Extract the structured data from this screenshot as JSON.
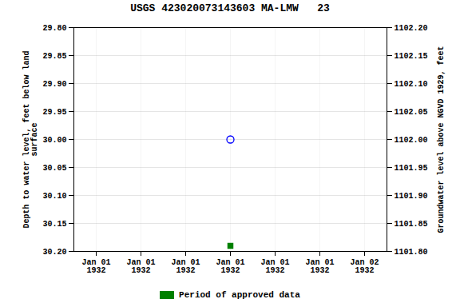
{
  "chart_data": {
    "type": "scatter",
    "title": "USGS 423020073143603 MA-LMW   23",
    "categories": [
      "Jan 01\n1932",
      "Jan 01\n1932",
      "Jan 01\n1932",
      "Jan 01\n1932",
      "Jan 01\n1932",
      "Jan 01\n1932",
      "Jan 02\n1932"
    ],
    "ylabel": "Depth to water level, feet below land\nsurface",
    "y2label": "Groundwater level above NGVD 1929, feet",
    "ylim": [
      30.2,
      29.8
    ],
    "yticks": [
      {
        "value": 29.8,
        "label": "29.80"
      },
      {
        "value": 29.85,
        "label": "29.85"
      },
      {
        "value": 29.9,
        "label": "29.90"
      },
      {
        "value": 29.95,
        "label": "29.95"
      },
      {
        "value": 30.0,
        "label": "30.00"
      },
      {
        "value": 30.05,
        "label": "30.05"
      },
      {
        "value": 30.1,
        "label": "30.10"
      },
      {
        "value": 30.15,
        "label": "30.15"
      },
      {
        "value": 30.2,
        "label": "30.20"
      }
    ],
    "y2lim": [
      1101.8,
      1102.2
    ],
    "y2ticks": [
      {
        "value": 1101.8,
        "label": "1101.80"
      },
      {
        "value": 1101.85,
        "label": "1101.85"
      },
      {
        "value": 1101.9,
        "label": "1101.90"
      },
      {
        "value": 1101.95,
        "label": "1101.95"
      },
      {
        "value": 1102.0,
        "label": "1102.00"
      },
      {
        "value": 1102.05,
        "label": "1102.05"
      },
      {
        "value": 1102.1,
        "label": "1102.10"
      },
      {
        "value": 1102.15,
        "label": "1102.15"
      },
      {
        "value": 1102.2,
        "label": "1102.20"
      }
    ],
    "grid": true,
    "legend": "bottom",
    "series": [
      {
        "color": "blue",
        "marker": "open_circle",
        "values": [
          null,
          null,
          null,
          30.0,
          null,
          null,
          null
        ]
      },
      {
        "name": "Period of approved data",
        "color": "#008000",
        "marker": "square",
        "values": [
          null,
          null,
          null,
          30.19,
          null,
          null,
          null
        ]
      }
    ]
  }
}
